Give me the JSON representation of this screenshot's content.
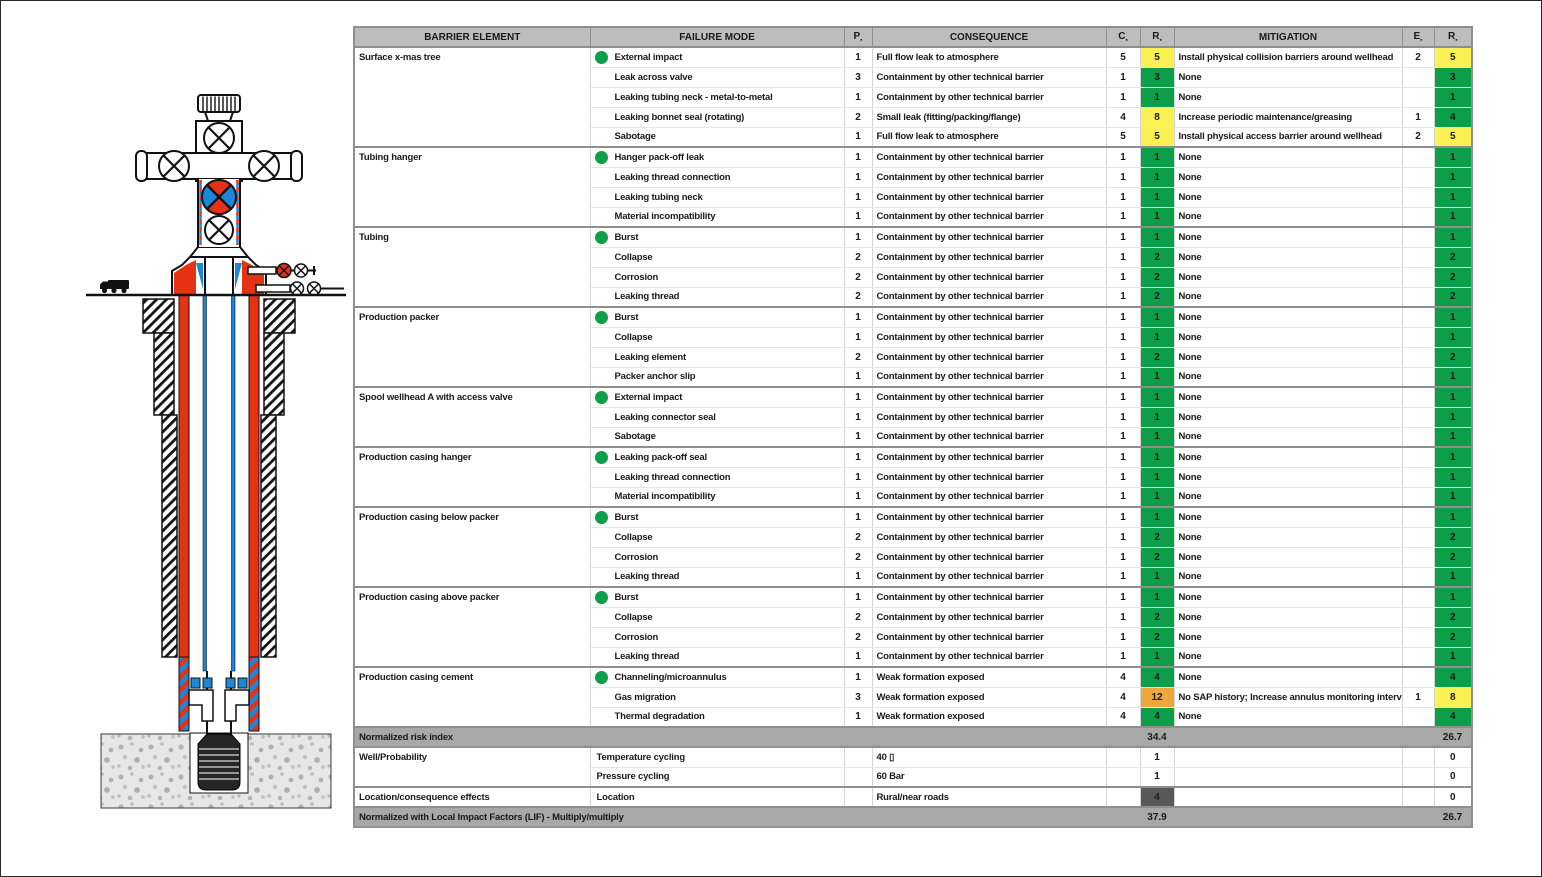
{
  "diagram": {
    "type": "well-barrier-schematic",
    "colors": {
      "red": "#E63214",
      "blue": "#1C86D8",
      "green-dot": "#0D9E4A"
    }
  },
  "table": {
    "headers": [
      {
        "label": "BARRIER ELEMENT",
        "sub": ""
      },
      {
        "label": "FAILURE MODE",
        "sub": ""
      },
      {
        "label": "P",
        "sub": "▪"
      },
      {
        "label": "CONSEQUENCE",
        "sub": ""
      },
      {
        "label": "C",
        "sub": "▪"
      },
      {
        "label": "R",
        "sub": "▪"
      },
      {
        "label": "MITIGATION",
        "sub": ""
      },
      {
        "label": "E",
        "sub": "▪"
      },
      {
        "label": "R",
        "sub": "▪"
      }
    ],
    "colors": {
      "green": "#0D9E4A",
      "yellow": "#FBF155",
      "orange": "#EDA73E",
      "dark": "#595959",
      "white": "#FFFFFF"
    },
    "groups": [
      {
        "element": "Surface x-mas tree",
        "rows": [
          {
            "fm": "External impact",
            "p": "1",
            "cons": "Full flow leak to atmosphere",
            "c": "5",
            "r": "5",
            "rc": "yellow",
            "mit": "Install physical collision barriers around wellhead",
            "e": "2",
            "rm": "5",
            "rmc": "yellow"
          },
          {
            "fm": "Leak across valve",
            "p": "3",
            "cons": "Containment by other technical barrier",
            "c": "1",
            "r": "3",
            "rc": "green",
            "mit": "None",
            "e": "",
            "rm": "3",
            "rmc": "green"
          },
          {
            "fm": "Leaking tubing neck - metal-to-metal",
            "p": "1",
            "cons": "Containment by other technical barrier",
            "c": "1",
            "r": "1",
            "rc": "green",
            "mit": "None",
            "e": "",
            "rm": "1",
            "rmc": "green"
          },
          {
            "fm": "Leaking bonnet seal (rotating)",
            "p": "2",
            "cons": "Small leak (fitting/packing/flange)",
            "c": "4",
            "r": "8",
            "rc": "yellow",
            "mit": "Increase periodic maintenance/greasing",
            "e": "1",
            "rm": "4",
            "rmc": "green"
          },
          {
            "fm": "Sabotage",
            "p": "1",
            "cons": "Full flow leak to atmosphere",
            "c": "5",
            "r": "5",
            "rc": "yellow",
            "mit": "Install physical access barrier around wellhead",
            "e": "2",
            "rm": "5",
            "rmc": "yellow"
          }
        ]
      },
      {
        "element": "Tubing hanger",
        "rows": [
          {
            "fm": "Hanger pack-off leak",
            "p": "1",
            "cons": "Containment by other technical barrier",
            "c": "1",
            "r": "1",
            "rc": "green",
            "mit": "None",
            "e": "",
            "rm": "1",
            "rmc": "green"
          },
          {
            "fm": "Leaking thread connection",
            "p": "1",
            "cons": "Containment by other technical barrier",
            "c": "1",
            "r": "1",
            "rc": "green",
            "mit": "None",
            "e": "",
            "rm": "1",
            "rmc": "green"
          },
          {
            "fm": "Leaking tubing neck",
            "p": "1",
            "cons": "Containment by other technical barrier",
            "c": "1",
            "r": "1",
            "rc": "green",
            "mit": "None",
            "e": "",
            "rm": "1",
            "rmc": "green"
          },
          {
            "fm": "Material incompatibility",
            "p": "1",
            "cons": "Containment by other technical barrier",
            "c": "1",
            "r": "1",
            "rc": "green",
            "mit": "None",
            "e": "",
            "rm": "1",
            "rmc": "green"
          }
        ]
      },
      {
        "element": "Tubing",
        "rows": [
          {
            "fm": "Burst",
            "p": "1",
            "cons": "Containment by other technical barrier",
            "c": "1",
            "r": "1",
            "rc": "green",
            "mit": "None",
            "e": "",
            "rm": "1",
            "rmc": "green"
          },
          {
            "fm": "Collapse",
            "p": "2",
            "cons": "Containment by other technical barrier",
            "c": "1",
            "r": "2",
            "rc": "green",
            "mit": "None",
            "e": "",
            "rm": "2",
            "rmc": "green"
          },
          {
            "fm": "Corrosion",
            "p": "2",
            "cons": "Containment by other technical barrier",
            "c": "1",
            "r": "2",
            "rc": "green",
            "mit": "None",
            "e": "",
            "rm": "2",
            "rmc": "green"
          },
          {
            "fm": "Leaking thread",
            "p": "2",
            "cons": "Containment by other technical barrier",
            "c": "1",
            "r": "2",
            "rc": "green",
            "mit": "None",
            "e": "",
            "rm": "2",
            "rmc": "green"
          }
        ]
      },
      {
        "element": "Production packer",
        "rows": [
          {
            "fm": "Burst",
            "p": "1",
            "cons": "Containment by other technical barrier",
            "c": "1",
            "r": "1",
            "rc": "green",
            "mit": "None",
            "e": "",
            "rm": "1",
            "rmc": "green"
          },
          {
            "fm": "Collapse",
            "p": "1",
            "cons": "Containment by other technical barrier",
            "c": "1",
            "r": "1",
            "rc": "green",
            "mit": "None",
            "e": "",
            "rm": "1",
            "rmc": "green"
          },
          {
            "fm": "Leaking element",
            "p": "2",
            "cons": "Containment by other technical barrier",
            "c": "1",
            "r": "2",
            "rc": "green",
            "mit": "None",
            "e": "",
            "rm": "2",
            "rmc": "green"
          },
          {
            "fm": "Packer anchor slip",
            "p": "1",
            "cons": "Containment by other technical barrier",
            "c": "1",
            "r": "1",
            "rc": "green",
            "mit": "None",
            "e": "",
            "rm": "1",
            "rmc": "green"
          }
        ]
      },
      {
        "element": "Spool wellhead A with access valve",
        "rows": [
          {
            "fm": "External impact",
            "p": "1",
            "cons": "Containment by other technical barrier",
            "c": "1",
            "r": "1",
            "rc": "green",
            "mit": "None",
            "e": "",
            "rm": "1",
            "rmc": "green"
          },
          {
            "fm": "Leaking connector seal",
            "p": "1",
            "cons": "Containment by other technical barrier",
            "c": "1",
            "r": "1",
            "rc": "green",
            "mit": "None",
            "e": "",
            "rm": "1",
            "rmc": "green"
          },
          {
            "fm": "Sabotage",
            "p": "1",
            "cons": "Containment by other technical barrier",
            "c": "1",
            "r": "1",
            "rc": "green",
            "mit": "None",
            "e": "",
            "rm": "1",
            "rmc": "green"
          }
        ]
      },
      {
        "element": "Production casing hanger",
        "rows": [
          {
            "fm": "Leaking pack-off seal",
            "p": "1",
            "cons": "Containment by other technical barrier",
            "c": "1",
            "r": "1",
            "rc": "green",
            "mit": "None",
            "e": "",
            "rm": "1",
            "rmc": "green"
          },
          {
            "fm": "Leaking thread connection",
            "p": "1",
            "cons": "Containment by other technical barrier",
            "c": "1",
            "r": "1",
            "rc": "green",
            "mit": "None",
            "e": "",
            "rm": "1",
            "rmc": "green"
          },
          {
            "fm": "Material incompatibility",
            "p": "1",
            "cons": "Containment by other technical barrier",
            "c": "1",
            "r": "1",
            "rc": "green",
            "mit": "None",
            "e": "",
            "rm": "1",
            "rmc": "green"
          }
        ]
      },
      {
        "element": "Production casing below packer",
        "rows": [
          {
            "fm": "Burst",
            "p": "1",
            "cons": "Containment by other technical barrier",
            "c": "1",
            "r": "1",
            "rc": "green",
            "mit": "None",
            "e": "",
            "rm": "1",
            "rmc": "green"
          },
          {
            "fm": "Collapse",
            "p": "2",
            "cons": "Containment by other technical barrier",
            "c": "1",
            "r": "2",
            "rc": "green",
            "mit": "None",
            "e": "",
            "rm": "2",
            "rmc": "green"
          },
          {
            "fm": "Corrosion",
            "p": "2",
            "cons": "Containment by other technical barrier",
            "c": "1",
            "r": "2",
            "rc": "green",
            "mit": "None",
            "e": "",
            "rm": "2",
            "rmc": "green"
          },
          {
            "fm": "Leaking thread",
            "p": "1",
            "cons": "Containment by other technical barrier",
            "c": "1",
            "r": "1",
            "rc": "green",
            "mit": "None",
            "e": "",
            "rm": "1",
            "rmc": "green"
          }
        ]
      },
      {
        "element": "Production casing above packer",
        "rows": [
          {
            "fm": "Burst",
            "p": "1",
            "cons": "Containment by other technical barrier",
            "c": "1",
            "r": "1",
            "rc": "green",
            "mit": "None",
            "e": "",
            "rm": "1",
            "rmc": "green"
          },
          {
            "fm": "Collapse",
            "p": "2",
            "cons": "Containment by other technical barrier",
            "c": "1",
            "r": "2",
            "rc": "green",
            "mit": "None",
            "e": "",
            "rm": "2",
            "rmc": "green"
          },
          {
            "fm": "Corrosion",
            "p": "2",
            "cons": "Containment by other technical barrier",
            "c": "1",
            "r": "2",
            "rc": "green",
            "mit": "None",
            "e": "",
            "rm": "2",
            "rmc": "green"
          },
          {
            "fm": "Leaking thread",
            "p": "1",
            "cons": "Containment by other technical barrier",
            "c": "1",
            "r": "1",
            "rc": "green",
            "mit": "None",
            "e": "",
            "rm": "1",
            "rmc": "green"
          }
        ]
      },
      {
        "element": "Production casing cement",
        "rows": [
          {
            "fm": "Channeling/microannulus",
            "p": "1",
            "cons": "Weak formation exposed",
            "c": "4",
            "r": "4",
            "rc": "green",
            "mit": "None",
            "e": "",
            "rm": "4",
            "rmc": "green"
          },
          {
            "fm": "Gas migration",
            "p": "3",
            "cons": "Weak formation exposed",
            "c": "4",
            "r": "12",
            "rc": "orange",
            "mit": "No SAP history; Increase annulus monitoring interval",
            "e": "1",
            "rm": "8",
            "rmc": "yellow"
          },
          {
            "fm": "Thermal degradation",
            "p": "1",
            "cons": "Weak formation exposed",
            "c": "4",
            "r": "4",
            "rc": "green",
            "mit": "None",
            "e": "",
            "rm": "4",
            "rmc": "green"
          }
        ]
      }
    ],
    "bands": {
      "risk_index": {
        "label": "Normalized risk index",
        "r": "34.4",
        "rm": "26.7"
      },
      "lif": {
        "label": "Normalized with Local Impact Factors (LIF) - Multiply/multiply",
        "r": "37.9",
        "rm": "26.7"
      }
    },
    "factors": [
      {
        "element": "Well/Probability",
        "rows": [
          {
            "fm": "Temperature cycling",
            "cons": "40 ▯",
            "r": "1",
            "rdark": false,
            "rm": "0"
          },
          {
            "fm": "Pressure cycling",
            "cons": "60 Bar",
            "r": "1",
            "rdark": false,
            "rm": "0"
          }
        ]
      },
      {
        "element": "Location/consequence effects",
        "rows": [
          {
            "fm": "Location",
            "cons": "Rural/near roads",
            "r": "4",
            "rdark": true,
            "rm": "0"
          }
        ]
      }
    ]
  }
}
